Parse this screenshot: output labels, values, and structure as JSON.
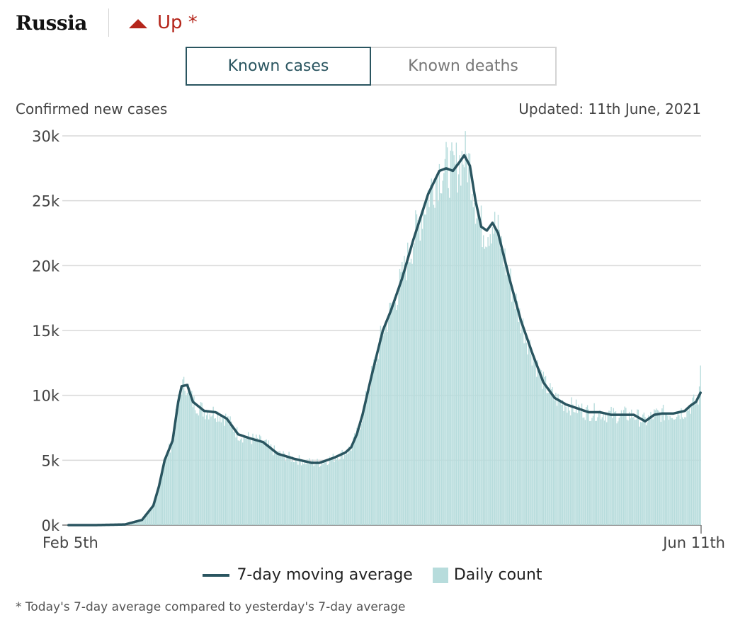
{
  "header": {
    "country": "Russia",
    "trend_label": "Up *",
    "trend_icon": "triangle-up-icon",
    "trend_color": "#b5261b"
  },
  "tabs": [
    {
      "label": "Known cases",
      "active": true
    },
    {
      "label": "Known deaths",
      "active": false
    }
  ],
  "subtitle": "Confirmed new cases",
  "updated": "Updated: 11th June, 2021",
  "legend": {
    "line_label": "7-day moving average",
    "bar_label": "Daily count"
  },
  "footnote": "* Today's 7-day average compared to yesterday's 7-day average",
  "chart_data": {
    "type": "bar",
    "start_date": "Feb 5th",
    "end_date": "Jun 11th",
    "x_tick_labels": [
      "Feb 5th",
      "Jun 11th"
    ],
    "y_ticks": [
      0,
      5000,
      10000,
      15000,
      20000,
      25000,
      30000
    ],
    "y_tick_labels": [
      "0k",
      "5k",
      "10k",
      "15k",
      "20k",
      "25k",
      "30k"
    ],
    "ylim": [
      0,
      30000
    ],
    "grid": true,
    "legend_placement": "bottom",
    "colors": {
      "bars": "#b7dcdc",
      "line": "#2a5560",
      "grid": "#d9d9d9"
    },
    "series": [
      {
        "name": "7-day moving average",
        "kind": "line",
        "anchors": [
          [
            0,
            0
          ],
          [
            24,
            0
          ],
          [
            50,
            50
          ],
          [
            65,
            400
          ],
          [
            75,
            1500
          ],
          [
            80,
            3000
          ],
          [
            85,
            5000
          ],
          [
            92,
            6500
          ],
          [
            97,
            9500
          ],
          [
            100,
            10700
          ],
          [
            105,
            10800
          ],
          [
            110,
            9500
          ],
          [
            120,
            8800
          ],
          [
            130,
            8700
          ],
          [
            140,
            8200
          ],
          [
            150,
            7000
          ],
          [
            160,
            6700
          ],
          [
            172,
            6400
          ],
          [
            185,
            5500
          ],
          [
            200,
            5100
          ],
          [
            215,
            4800
          ],
          [
            222,
            4800
          ],
          [
            235,
            5200
          ],
          [
            245,
            5600
          ],
          [
            250,
            6000
          ],
          [
            255,
            7000
          ],
          [
            260,
            8500
          ],
          [
            268,
            11500
          ],
          [
            278,
            15000
          ],
          [
            285,
            16500
          ],
          [
            295,
            19000
          ],
          [
            305,
            22000
          ],
          [
            318,
            25500
          ],
          [
            328,
            27300
          ],
          [
            334,
            27500
          ],
          [
            340,
            27300
          ],
          [
            346,
            28000
          ],
          [
            350,
            28500
          ],
          [
            355,
            27700
          ],
          [
            360,
            25000
          ],
          [
            365,
            23000
          ],
          [
            370,
            22700
          ],
          [
            375,
            23300
          ],
          [
            380,
            22500
          ],
          [
            390,
            19000
          ],
          [
            400,
            15800
          ],
          [
            410,
            13300
          ],
          [
            420,
            11000
          ],
          [
            430,
            9800
          ],
          [
            440,
            9300
          ],
          [
            450,
            9000
          ],
          [
            460,
            8700
          ],
          [
            470,
            8700
          ],
          [
            480,
            8500
          ],
          [
            490,
            8500
          ],
          [
            500,
            8500
          ],
          [
            510,
            8000
          ],
          [
            518,
            8500
          ],
          [
            525,
            8600
          ],
          [
            535,
            8600
          ],
          [
            545,
            8800
          ],
          [
            550,
            9200
          ],
          [
            555,
            9500
          ],
          [
            559,
            10200
          ]
        ]
      },
      {
        "name": "Daily count",
        "kind": "bar",
        "note": "daily values fluctuate around the 7-day average",
        "final_value": 12300
      }
    ]
  }
}
